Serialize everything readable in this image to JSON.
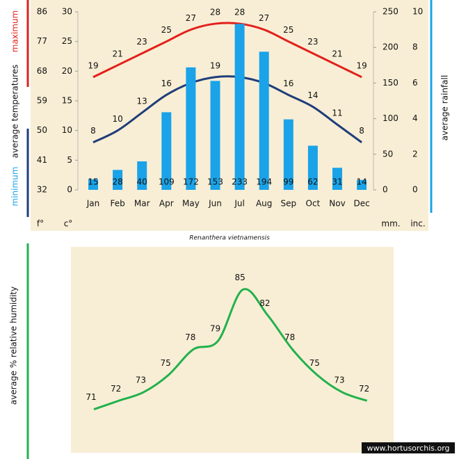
{
  "chart_data": [
    {
      "type": "combo",
      "title": "Renanthera vietnamensis",
      "categories": [
        "Jan",
        "Feb",
        "Mar",
        "Apr",
        "May",
        "Jun",
        "Jul",
        "Aug",
        "Sep",
        "Oct",
        "Nov",
        "Dec"
      ],
      "ylabel": "average temperatures",
      "ylim": [
        0,
        30
      ],
      "yticks": [
        0,
        5,
        10,
        15,
        20,
        25,
        30
      ],
      "ylim_f": [
        32,
        86
      ],
      "yticks_f": [
        32,
        41,
        50,
        59,
        68,
        77,
        86
      ],
      "y2label": "average rainfall",
      "y2lim": [
        0,
        250
      ],
      "y2ticks": [
        0,
        50,
        100,
        150,
        200,
        250
      ],
      "y2lim_in": [
        0,
        10
      ],
      "y2ticks_in": [
        0,
        2,
        4,
        6,
        8,
        10
      ],
      "unit_labels": {
        "f": "f°",
        "c": "c°",
        "mm": "mm.",
        "in": "inc."
      },
      "series": [
        {
          "name": "maximum",
          "type": "line",
          "color": "#e3201b",
          "values": [
            19,
            21,
            23,
            25,
            27,
            28,
            28,
            27,
            25,
            23,
            21,
            19
          ]
        },
        {
          "name": "minimum",
          "type": "line",
          "color": "#1f3d7a",
          "name_color": "#1aa3e8",
          "values": [
            8,
            10,
            13,
            16,
            18,
            19,
            19,
            18,
            16,
            14,
            11,
            8
          ]
        },
        {
          "type": "bar",
          "axis": "y2",
          "color": "#1aa3e8",
          "values": [
            15,
            28,
            40,
            109,
            172,
            153,
            233,
            194,
            99,
            62,
            31,
            14
          ]
        }
      ]
    },
    {
      "type": "line",
      "ylabel": "average % relative humidity",
      "ylim": [
        66,
        90
      ],
      "credit": "www.hortusorchis.org",
      "series": [
        {
          "color": "#22b14c",
          "values": [
            71,
            72,
            73,
            75,
            78,
            79,
            85,
            82,
            78,
            75,
            73,
            72
          ]
        }
      ]
    }
  ]
}
